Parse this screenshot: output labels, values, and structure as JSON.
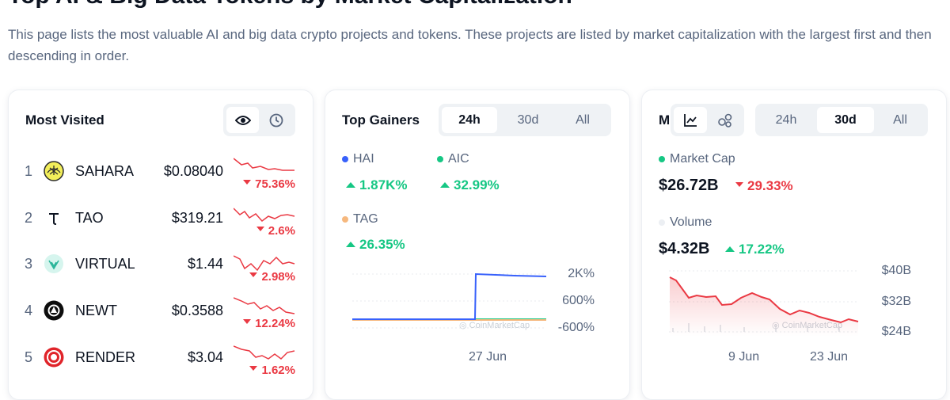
{
  "header": {
    "title": "Top AI & Big Data Tokens by Market Capitalization",
    "description": "This page lists the most valuable AI and big data crypto projects and tokens. These projects are listed by market capitalization with the largest first and then descending in order."
  },
  "most_visited": {
    "title": "Most Visited",
    "rows": [
      {
        "rank": "1",
        "name": "SAHARA",
        "price": "$0.08040",
        "change": "75.36%"
      },
      {
        "rank": "2",
        "name": "TAO",
        "price": "$319.21",
        "change": "2.6%"
      },
      {
        "rank": "3",
        "name": "VIRTUAL",
        "price": "$1.44",
        "change": "2.98%"
      },
      {
        "rank": "4",
        "name": "NEWT",
        "price": "$0.3588",
        "change": "12.24%"
      },
      {
        "rank": "5",
        "name": "RENDER",
        "price": "$3.04",
        "change": "1.62%"
      }
    ]
  },
  "top_gainers": {
    "title": "Top Gainers",
    "tabs": [
      "24h",
      "30d",
      "All"
    ],
    "legend": [
      {
        "name": "HAI",
        "change": "1.87K%"
      },
      {
        "name": "AIC",
        "change": "32.99%"
      },
      {
        "name": "TAG",
        "change": "26.35%"
      }
    ],
    "yticks": [
      "2K%",
      "600%",
      "-600%"
    ],
    "xticks": [
      "27 Jun"
    ]
  },
  "market": {
    "title": "M",
    "tabs": [
      "24h",
      "30d",
      "All"
    ],
    "market_cap": {
      "label": "Market Cap",
      "value": "$26.72B",
      "change": "29.33%"
    },
    "volume": {
      "label": "Volume",
      "value": "$4.32B",
      "change": "17.22%"
    },
    "yticks": [
      "$40B",
      "$32B",
      "$24B"
    ],
    "xticks": [
      "9 Jun",
      "23 Jun"
    ]
  }
}
